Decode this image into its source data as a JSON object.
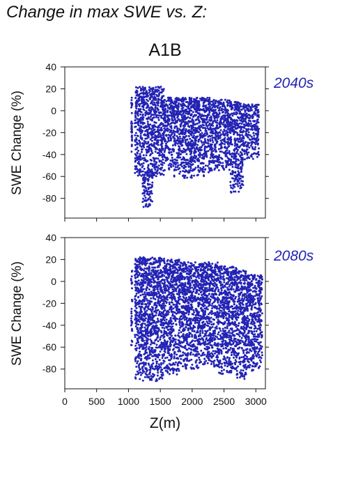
{
  "page_title": "Change in max SWE vs. Z:",
  "chart_data": [
    {
      "type": "scatter",
      "title": "A1B",
      "panel_label": "2040s",
      "xlabel": "",
      "ylabel": "SWE Change (%)",
      "xlim": [
        0,
        3150
      ],
      "ylim": [
        -98,
        40
      ],
      "x_ticks": [
        0,
        500,
        1000,
        1500,
        2000,
        2500,
        3000
      ],
      "y_ticks": [
        40,
        20,
        0,
        -20,
        -40,
        -60,
        -80
      ],
      "x_tick_labels_shown": false,
      "grid": false,
      "point_color": "#2323b4",
      "bands": [
        {
          "x": [
            1040,
            1060
          ],
          "y": [
            -40,
            12
          ]
        },
        {
          "x": [
            1100,
            1560
          ],
          "y": [
            -60,
            22
          ]
        },
        {
          "x": [
            1220,
            1380
          ],
          "y": [
            -88,
            -55
          ]
        },
        {
          "x": [
            1560,
            1700
          ],
          "y": [
            -55,
            12
          ]
        },
        {
          "x": [
            1700,
            2000
          ],
          "y": [
            -62,
            12
          ]
        },
        {
          "x": [
            2000,
            2300
          ],
          "y": [
            -60,
            12
          ]
        },
        {
          "x": [
            2300,
            2600
          ],
          "y": [
            -55,
            10
          ]
        },
        {
          "x": [
            2600,
            2800
          ],
          "y": [
            -75,
            8
          ]
        },
        {
          "x": [
            2800,
            3050
          ],
          "y": [
            -45,
            6
          ]
        }
      ]
    },
    {
      "type": "scatter",
      "title": "",
      "panel_label": "2080s",
      "xlabel": "Z(m)",
      "ylabel": "SWE Change (%)",
      "xlim": [
        0,
        3150
      ],
      "ylim": [
        -98,
        40
      ],
      "x_ticks": [
        0,
        500,
        1000,
        1500,
        2000,
        2500,
        3000
      ],
      "x_tick_labels": [
        "0",
        "500",
        "1000",
        "1500",
        "2000",
        "2500",
        "3000"
      ],
      "y_ticks": [
        40,
        20,
        0,
        -20,
        -40,
        -60,
        -80
      ],
      "x_tick_labels_shown": true,
      "grid": false,
      "point_color": "#2323b4",
      "bands": [
        {
          "x": [
            1040,
            1060
          ],
          "y": [
            -60,
            12
          ]
        },
        {
          "x": [
            1100,
            1560
          ],
          "y": [
            -92,
            22
          ]
        },
        {
          "x": [
            1560,
            1800
          ],
          "y": [
            -85,
            20
          ]
        },
        {
          "x": [
            1800,
            2100
          ],
          "y": [
            -80,
            18
          ]
        },
        {
          "x": [
            2100,
            2400
          ],
          "y": [
            -78,
            18
          ]
        },
        {
          "x": [
            2400,
            2700
          ],
          "y": [
            -85,
            14
          ]
        },
        {
          "x": [
            2700,
            2850
          ],
          "y": [
            -90,
            10
          ]
        },
        {
          "x": [
            2850,
            3100
          ],
          "y": [
            -82,
            6
          ]
        }
      ]
    }
  ]
}
